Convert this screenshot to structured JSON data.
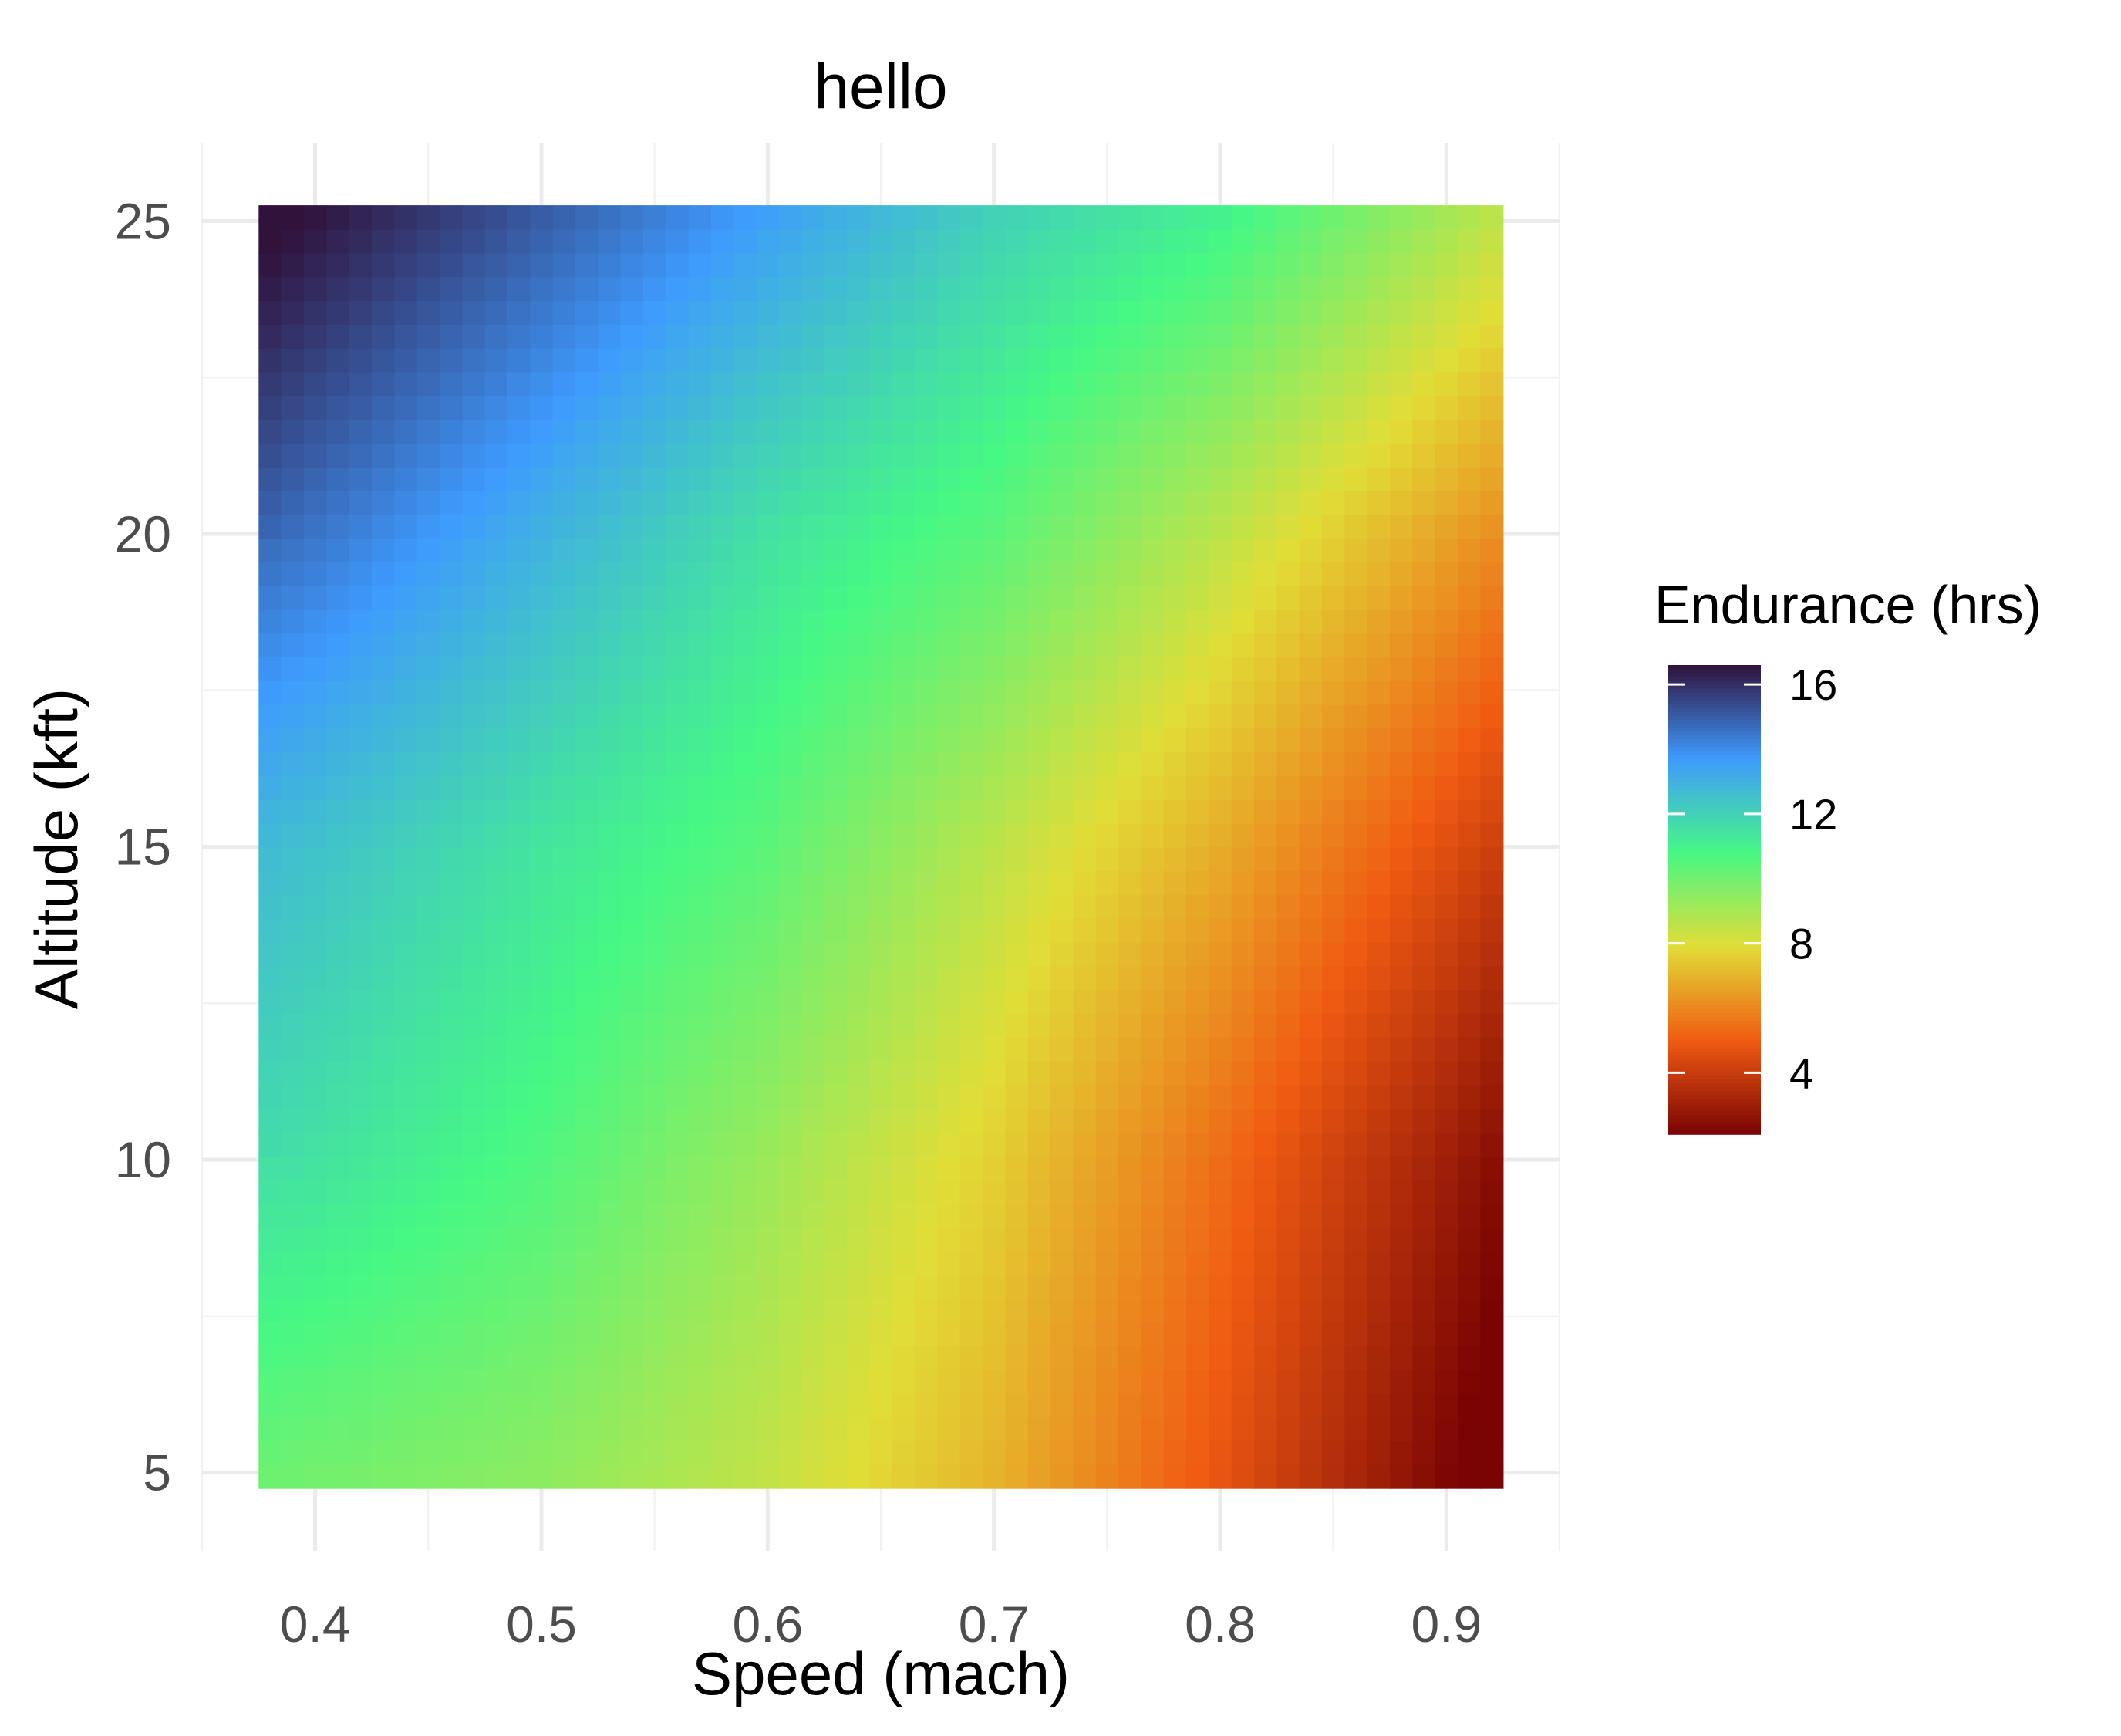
{
  "chart_data": {
    "type": "heatmap",
    "title": "hello",
    "xlabel": "Speed (mach)",
    "ylabel": "Altitude (kft)",
    "xlim": [
      0.35,
      0.95
    ],
    "ylim": [
      3.75,
      26.25
    ],
    "x_ticks": [
      0.4,
      0.5,
      0.6,
      0.7,
      0.8,
      0.9
    ],
    "x_tick_labels": [
      "0.4",
      "0.5",
      "0.6",
      "0.7",
      "0.8",
      "0.9"
    ],
    "y_ticks": [
      5,
      10,
      15,
      20,
      25
    ],
    "y_tick_labels": [
      "5",
      "10",
      "15",
      "20",
      "25"
    ],
    "grid": true,
    "x": [
      0.4,
      0.5,
      0.6,
      0.7,
      0.8,
      0.9
    ],
    "y": [
      5,
      10,
      15,
      20,
      25
    ],
    "z_rows_by_altitude": [
      [
        10.0,
        9.5,
        8.5,
        7.0,
        4.8,
        2.2
      ],
      [
        11.5,
        10.6,
        9.2,
        7.6,
        5.4,
        3.0
      ],
      [
        12.5,
        11.4,
        10.4,
        8.6,
        6.8,
        4.6
      ],
      [
        14.5,
        13.0,
        11.5,
        10.4,
        8.6,
        6.6
      ],
      [
        16.5,
        15.0,
        13.5,
        12.0,
        11.0,
        9.0
      ]
    ],
    "legend": {
      "title": "Endurance (hrs)",
      "position": "right",
      "range": [
        2.1,
        16.6
      ],
      "breaks": [
        16,
        12,
        8,
        4
      ],
      "break_labels": [
        "16",
        "12",
        "8",
        "4"
      ]
    },
    "colormap": [
      "#30123b",
      "#3e9bfe",
      "#46f884",
      "#e1dd37",
      "#f05b12",
      "#7a0403"
    ]
  }
}
